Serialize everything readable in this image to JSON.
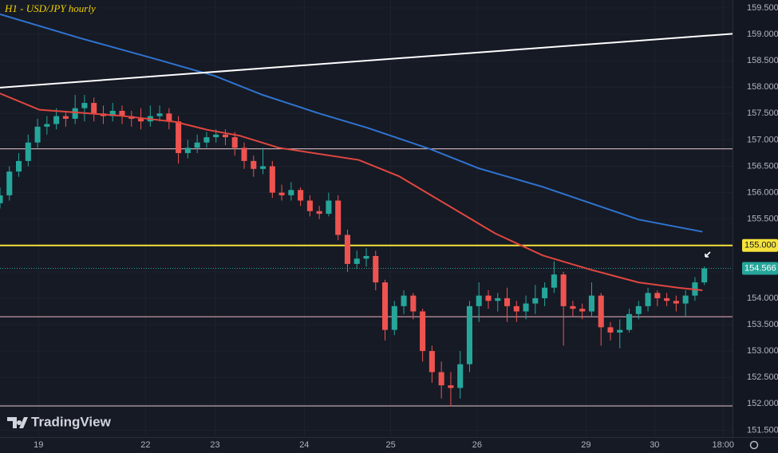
{
  "chart_data": {
    "type": "candlestick",
    "title": "H1 - USD/JPY hourly",
    "brand": "TradingView",
    "up_color": "#26a69a",
    "down_color": "#ef5350",
    "xlim": [
      0,
      78
    ],
    "ylim": [
      151.37,
      159.65
    ],
    "xticks": [
      {
        "value": 4.1,
        "label": "19"
      },
      {
        "value": 15.5,
        "label": "22"
      },
      {
        "value": 22.9,
        "label": "23"
      },
      {
        "value": 32.4,
        "label": "24"
      },
      {
        "value": 41.6,
        "label": "25"
      },
      {
        "value": 50.8,
        "label": "26"
      },
      {
        "value": 62.4,
        "label": "29"
      },
      {
        "value": 69.7,
        "label": "30"
      },
      {
        "value": 77,
        "label": "18:00"
      }
    ],
    "yticks": [
      {
        "value": 151.5,
        "label": "151.500"
      },
      {
        "value": 152,
        "label": "152.000"
      },
      {
        "value": 152.5,
        "label": "152.500"
      },
      {
        "value": 153,
        "label": "153.000"
      },
      {
        "value": 153.5,
        "label": "153.500"
      },
      {
        "value": 154,
        "label": "154.000"
      },
      {
        "value": 154.5,
        "label": "154.500"
      },
      {
        "value": 155,
        "label": "155.000"
      },
      {
        "value": 155.5,
        "label": "155.500"
      },
      {
        "value": 156,
        "label": "156.000"
      },
      {
        "value": 156.5,
        "label": "156.500"
      },
      {
        "value": 157,
        "label": "157.000"
      },
      {
        "value": 157.5,
        "label": "157.500"
      },
      {
        "value": 158,
        "label": "158.000"
      },
      {
        "value": 158.5,
        "label": "158.500"
      },
      {
        "value": 159,
        "label": "159.000"
      },
      {
        "value": 159.5,
        "label": "159.500"
      }
    ],
    "open": [
      155.8,
      155.95,
      156.4,
      156.6,
      156.95,
      157.25,
      157.3,
      157.45,
      157.4,
      157.6,
      157.7,
      157.5,
      157.45,
      157.55,
      157.45,
      157.4,
      157.35,
      157.45,
      157.5,
      157.35,
      156.75,
      156.85,
      156.95,
      157.05,
      157.1,
      157.05,
      156.85,
      156.6,
      156.45,
      156.5,
      156.0,
      155.95,
      156.05,
      155.85,
      155.65,
      155.6,
      155.85,
      155.2,
      154.65,
      154.75,
      154.8,
      154.3,
      153.4,
      153.85,
      154.05,
      153.75,
      153.0,
      152.6,
      152.35,
      152.3,
      152.75,
      153.85,
      154.05,
      153.95,
      154.0,
      153.85,
      153.75,
      153.9,
      154.0,
      154.2,
      154.45,
      153.85,
      153.8,
      153.75,
      154.05,
      153.45,
      153.35,
      153.4,
      153.7,
      153.85,
      154.1,
      154.0,
      153.95,
      153.9,
      154.05,
      154.3
    ],
    "high": [
      156.1,
      156.5,
      156.75,
      157.1,
      157.4,
      157.45,
      157.6,
      157.55,
      157.85,
      157.85,
      157.8,
      157.65,
      157.7,
      157.65,
      157.55,
      157.6,
      157.65,
      157.65,
      157.6,
      157.45,
      157.0,
      157.1,
      157.15,
      157.2,
      157.2,
      157.15,
      156.95,
      156.7,
      156.85,
      156.6,
      156.15,
      156.2,
      156.1,
      155.95,
      155.75,
      156.0,
      155.95,
      155.3,
      154.9,
      154.95,
      154.9,
      154.35,
      153.95,
      154.15,
      154.1,
      153.8,
      153.1,
      152.8,
      152.6,
      153.0,
      153.95,
      154.3,
      154.15,
      154.1,
      154.2,
      153.95,
      154.05,
      154.25,
      154.3,
      154.7,
      154.5,
      153.95,
      153.9,
      154.3,
      154.1,
      153.55,
      153.6,
      153.8,
      153.95,
      154.2,
      154.15,
      154.1,
      154.05,
      154.15,
      154.4,
      154.6
    ],
    "low": [
      155.7,
      155.85,
      156.3,
      156.5,
      156.85,
      157.1,
      157.2,
      157.25,
      157.3,
      157.35,
      157.35,
      157.3,
      157.35,
      157.3,
      157.25,
      157.2,
      157.25,
      157.35,
      157.2,
      156.55,
      156.65,
      156.75,
      156.85,
      156.95,
      156.9,
      156.7,
      156.45,
      156.3,
      156.35,
      155.9,
      155.85,
      155.85,
      155.75,
      155.55,
      155.5,
      155.55,
      155.1,
      154.5,
      154.55,
      154.6,
      154.15,
      153.2,
      153.3,
      153.7,
      153.6,
      152.8,
      152.4,
      152.1,
      151.95,
      152.1,
      152.6,
      153.55,
      153.8,
      153.75,
      153.55,
      153.55,
      153.6,
      153.7,
      153.85,
      154.1,
      153.1,
      153.65,
      153.6,
      153.65,
      153.1,
      153.2,
      153.05,
      153.35,
      153.6,
      153.75,
      153.85,
      153.85,
      153.75,
      153.65,
      153.95,
      154.25
    ],
    "close": [
      155.95,
      156.4,
      156.6,
      156.95,
      157.25,
      157.3,
      157.45,
      157.4,
      157.6,
      157.7,
      157.5,
      157.45,
      157.55,
      157.45,
      157.4,
      157.35,
      157.45,
      157.5,
      157.35,
      156.75,
      156.85,
      156.95,
      157.05,
      157.1,
      157.05,
      156.85,
      156.6,
      156.45,
      156.5,
      156.0,
      155.95,
      156.05,
      155.85,
      155.65,
      155.6,
      155.85,
      155.2,
      154.65,
      154.75,
      154.8,
      154.3,
      153.4,
      153.85,
      154.05,
      153.75,
      153.0,
      152.6,
      152.35,
      152.3,
      152.75,
      153.85,
      154.05,
      153.95,
      154.0,
      153.85,
      153.75,
      153.9,
      154.0,
      154.2,
      154.45,
      153.85,
      153.8,
      153.75,
      154.05,
      153.45,
      153.35,
      153.4,
      153.7,
      153.85,
      154.1,
      154.0,
      153.95,
      153.9,
      154.05,
      154.3,
      154.566
    ],
    "lines": [
      {
        "color": "#e0473f",
        "x": [
          0,
          4.2,
          12.7,
          18.7,
          22.1,
          25.5,
          29.7,
          38.2,
          42.5,
          47.6,
          52.7,
          57.8,
          62.9,
          68,
          72.2,
          74.8
        ],
        "values": [
          157.88,
          157.57,
          157.46,
          157.34,
          157.19,
          157.08,
          156.85,
          156.62,
          156.31,
          155.77,
          155.23,
          154.81,
          154.54,
          154.3,
          154.2,
          154.15
        ]
      },
      {
        "color": "#2f74d0",
        "x": [
          0,
          8.5,
          17,
          22.9,
          28,
          34,
          39.1,
          45.9,
          51,
          57.8,
          62.9,
          68,
          74.8
        ],
        "values": [
          159.38,
          158.93,
          158.51,
          158.21,
          157.85,
          157.5,
          157.23,
          156.82,
          156.46,
          156.11,
          155.8,
          155.49,
          155.26
        ]
      },
      {
        "color": "#ffffff",
        "x": [
          0,
          78
        ],
        "values": [
          157.99,
          159.01
        ]
      }
    ],
    "levels": [
      {
        "value": 156.83,
        "color": "#e8c8cc"
      },
      {
        "value": 155,
        "color": "#f5e23a",
        "label": "155.000"
      },
      {
        "value": 153.65,
        "color": "#f0b7bf"
      },
      {
        "value": 151.96,
        "color": "#e8c8cc"
      }
    ],
    "last": {
      "value": 154.566,
      "label": "154.566"
    }
  }
}
